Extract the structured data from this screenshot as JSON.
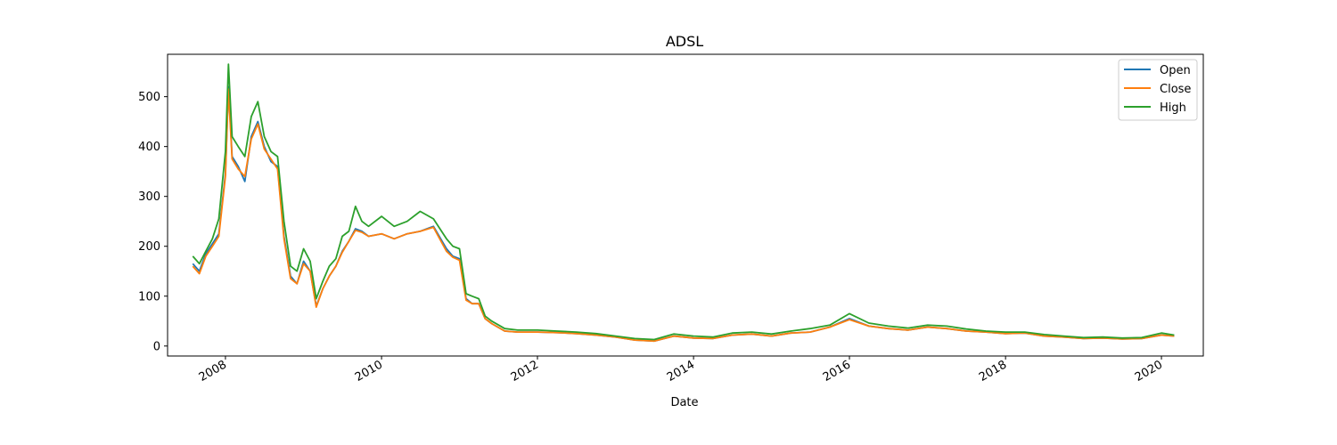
{
  "chart_data": {
    "type": "line",
    "title": "ADSL",
    "xlabel": "Date",
    "ylabel": "",
    "xlim": [
      "2007-04-05",
      "2020-07-15"
    ],
    "ylim": [
      -20,
      585
    ],
    "x_ticks": [
      "2008",
      "2010",
      "2012",
      "2014",
      "2016",
      "2018",
      "2020"
    ],
    "y_ticks": [
      0,
      100,
      200,
      300,
      400,
      500
    ],
    "grid": false,
    "legend_position": "top-right",
    "series": [
      {
        "name": "Open",
        "color": "#1f77b4",
        "x": [
          "2007-08-01",
          "2007-09-01",
          "2007-10-01",
          "2007-11-01",
          "2007-12-01",
          "2008-01-01",
          "2008-01-15",
          "2008-02-01",
          "2008-03-01",
          "2008-04-01",
          "2008-05-01",
          "2008-06-01",
          "2008-07-01",
          "2008-08-01",
          "2008-09-01",
          "2008-10-01",
          "2008-11-01",
          "2008-12-01",
          "2009-01-01",
          "2009-02-01",
          "2009-03-01",
          "2009-04-01",
          "2009-05-01",
          "2009-06-01",
          "2009-07-01",
          "2009-08-01",
          "2009-09-01",
          "2009-10-01",
          "2009-11-01",
          "2010-01-01",
          "2010-03-01",
          "2010-05-01",
          "2010-07-01",
          "2010-09-01",
          "2010-11-01",
          "2010-12-01",
          "2011-01-01",
          "2011-02-01",
          "2011-03-01",
          "2011-04-01",
          "2011-05-01",
          "2011-06-01",
          "2011-08-01",
          "2011-10-01",
          "2012-01-01",
          "2012-04-01",
          "2012-07-01",
          "2012-10-01",
          "2013-01-01",
          "2013-04-01",
          "2013-07-01",
          "2013-10-01",
          "2014-01-01",
          "2014-04-01",
          "2014-07-01",
          "2014-10-01",
          "2015-01-01",
          "2015-04-01",
          "2015-07-01",
          "2015-10-01",
          "2016-01-01",
          "2016-04-01",
          "2016-07-01",
          "2016-10-01",
          "2017-01-01",
          "2017-04-01",
          "2017-07-01",
          "2017-10-01",
          "2018-01-01",
          "2018-04-01",
          "2018-07-01",
          "2018-10-01",
          "2019-01-01",
          "2019-04-01",
          "2019-07-01",
          "2019-10-01",
          "2020-01-01",
          "2020-03-01"
        ],
        "values": [
          165,
          150,
          185,
          205,
          225,
          345,
          520,
          380,
          360,
          330,
          420,
          450,
          400,
          370,
          360,
          220,
          140,
          125,
          170,
          150,
          80,
          115,
          140,
          160,
          190,
          210,
          235,
          230,
          220,
          225,
          215,
          225,
          230,
          240,
          195,
          180,
          175,
          95,
          85,
          85,
          55,
          45,
          30,
          28,
          28,
          27,
          25,
          22,
          18,
          12,
          10,
          20,
          16,
          15,
          22,
          24,
          20,
          26,
          28,
          38,
          55,
          40,
          35,
          32,
          38,
          35,
          30,
          28,
          25,
          26,
          20,
          18,
          15,
          16,
          14,
          15,
          22,
          20
        ]
      },
      {
        "name": "Close",
        "color": "#ff7f0e",
        "x": [
          "2007-08-01",
          "2007-09-01",
          "2007-10-01",
          "2007-11-01",
          "2007-12-01",
          "2008-01-01",
          "2008-01-15",
          "2008-02-01",
          "2008-03-01",
          "2008-04-01",
          "2008-05-01",
          "2008-06-01",
          "2008-07-01",
          "2008-08-01",
          "2008-09-01",
          "2008-10-01",
          "2008-11-01",
          "2008-12-01",
          "2009-01-01",
          "2009-02-01",
          "2009-03-01",
          "2009-04-01",
          "2009-05-01",
          "2009-06-01",
          "2009-07-01",
          "2009-08-01",
          "2009-09-01",
          "2009-10-01",
          "2009-11-01",
          "2010-01-01",
          "2010-03-01",
          "2010-05-01",
          "2010-07-01",
          "2010-09-01",
          "2010-11-01",
          "2010-12-01",
          "2011-01-01",
          "2011-02-01",
          "2011-03-01",
          "2011-04-01",
          "2011-05-01",
          "2011-06-01",
          "2011-08-01",
          "2011-10-01",
          "2012-01-01",
          "2012-04-01",
          "2012-07-01",
          "2012-10-01",
          "2013-01-01",
          "2013-04-01",
          "2013-07-01",
          "2013-10-01",
          "2014-01-01",
          "2014-04-01",
          "2014-07-01",
          "2014-10-01",
          "2015-01-01",
          "2015-04-01",
          "2015-07-01",
          "2015-10-01",
          "2016-01-01",
          "2016-04-01",
          "2016-07-01",
          "2016-10-01",
          "2017-01-01",
          "2017-04-01",
          "2017-07-01",
          "2017-10-01",
          "2018-01-01",
          "2018-04-01",
          "2018-07-01",
          "2018-10-01",
          "2019-01-01",
          "2019-04-01",
          "2019-07-01",
          "2019-10-01",
          "2020-01-01",
          "2020-03-01"
        ],
        "values": [
          160,
          145,
          180,
          200,
          220,
          340,
          515,
          375,
          355,
          340,
          415,
          445,
          395,
          375,
          355,
          215,
          135,
          125,
          165,
          150,
          78,
          115,
          140,
          160,
          188,
          210,
          232,
          228,
          220,
          225,
          215,
          225,
          230,
          238,
          190,
          178,
          172,
          92,
          85,
          85,
          55,
          45,
          30,
          28,
          28,
          27,
          25,
          22,
          18,
          12,
          10,
          20,
          16,
          15,
          22,
          24,
          20,
          26,
          28,
          38,
          53,
          40,
          35,
          32,
          38,
          35,
          30,
          28,
          25,
          26,
          20,
          18,
          15,
          16,
          14,
          15,
          22,
          20
        ]
      },
      {
        "name": "High",
        "color": "#2ca02c",
        "x": [
          "2007-08-01",
          "2007-09-01",
          "2007-10-01",
          "2007-11-01",
          "2007-12-01",
          "2008-01-01",
          "2008-01-15",
          "2008-02-01",
          "2008-03-01",
          "2008-04-01",
          "2008-05-01",
          "2008-06-01",
          "2008-07-01",
          "2008-08-01",
          "2008-09-01",
          "2008-10-01",
          "2008-11-01",
          "2008-12-01",
          "2009-01-01",
          "2009-02-01",
          "2009-03-01",
          "2009-04-01",
          "2009-05-01",
          "2009-06-01",
          "2009-07-01",
          "2009-08-01",
          "2009-09-01",
          "2009-10-01",
          "2009-11-01",
          "2010-01-01",
          "2010-03-01",
          "2010-05-01",
          "2010-07-01",
          "2010-09-01",
          "2010-11-01",
          "2010-12-01",
          "2011-01-01",
          "2011-02-01",
          "2011-03-01",
          "2011-04-01",
          "2011-05-01",
          "2011-06-01",
          "2011-08-01",
          "2011-10-01",
          "2012-01-01",
          "2012-04-01",
          "2012-07-01",
          "2012-10-01",
          "2013-01-01",
          "2013-04-01",
          "2013-07-01",
          "2013-10-01",
          "2014-01-01",
          "2014-04-01",
          "2014-07-01",
          "2014-10-01",
          "2015-01-01",
          "2015-04-01",
          "2015-07-01",
          "2015-10-01",
          "2016-01-01",
          "2016-04-01",
          "2016-07-01",
          "2016-10-01",
          "2017-01-01",
          "2017-04-01",
          "2017-07-01",
          "2017-10-01",
          "2018-01-01",
          "2018-04-01",
          "2018-07-01",
          "2018-10-01",
          "2019-01-01",
          "2019-04-01",
          "2019-07-01",
          "2019-10-01",
          "2020-01-01",
          "2020-03-01"
        ],
        "values": [
          180,
          165,
          190,
          215,
          255,
          390,
          565,
          420,
          400,
          380,
          460,
          490,
          420,
          390,
          380,
          250,
          160,
          150,
          195,
          170,
          95,
          130,
          160,
          175,
          220,
          230,
          280,
          250,
          240,
          260,
          240,
          250,
          270,
          255,
          215,
          200,
          195,
          105,
          100,
          95,
          60,
          50,
          35,
          32,
          32,
          30,
          28,
          25,
          20,
          15,
          13,
          24,
          20,
          18,
          26,
          28,
          24,
          30,
          35,
          42,
          65,
          46,
          40,
          36,
          42,
          40,
          34,
          30,
          28,
          28,
          23,
          20,
          17,
          18,
          16,
          17,
          26,
          22
        ]
      }
    ]
  }
}
